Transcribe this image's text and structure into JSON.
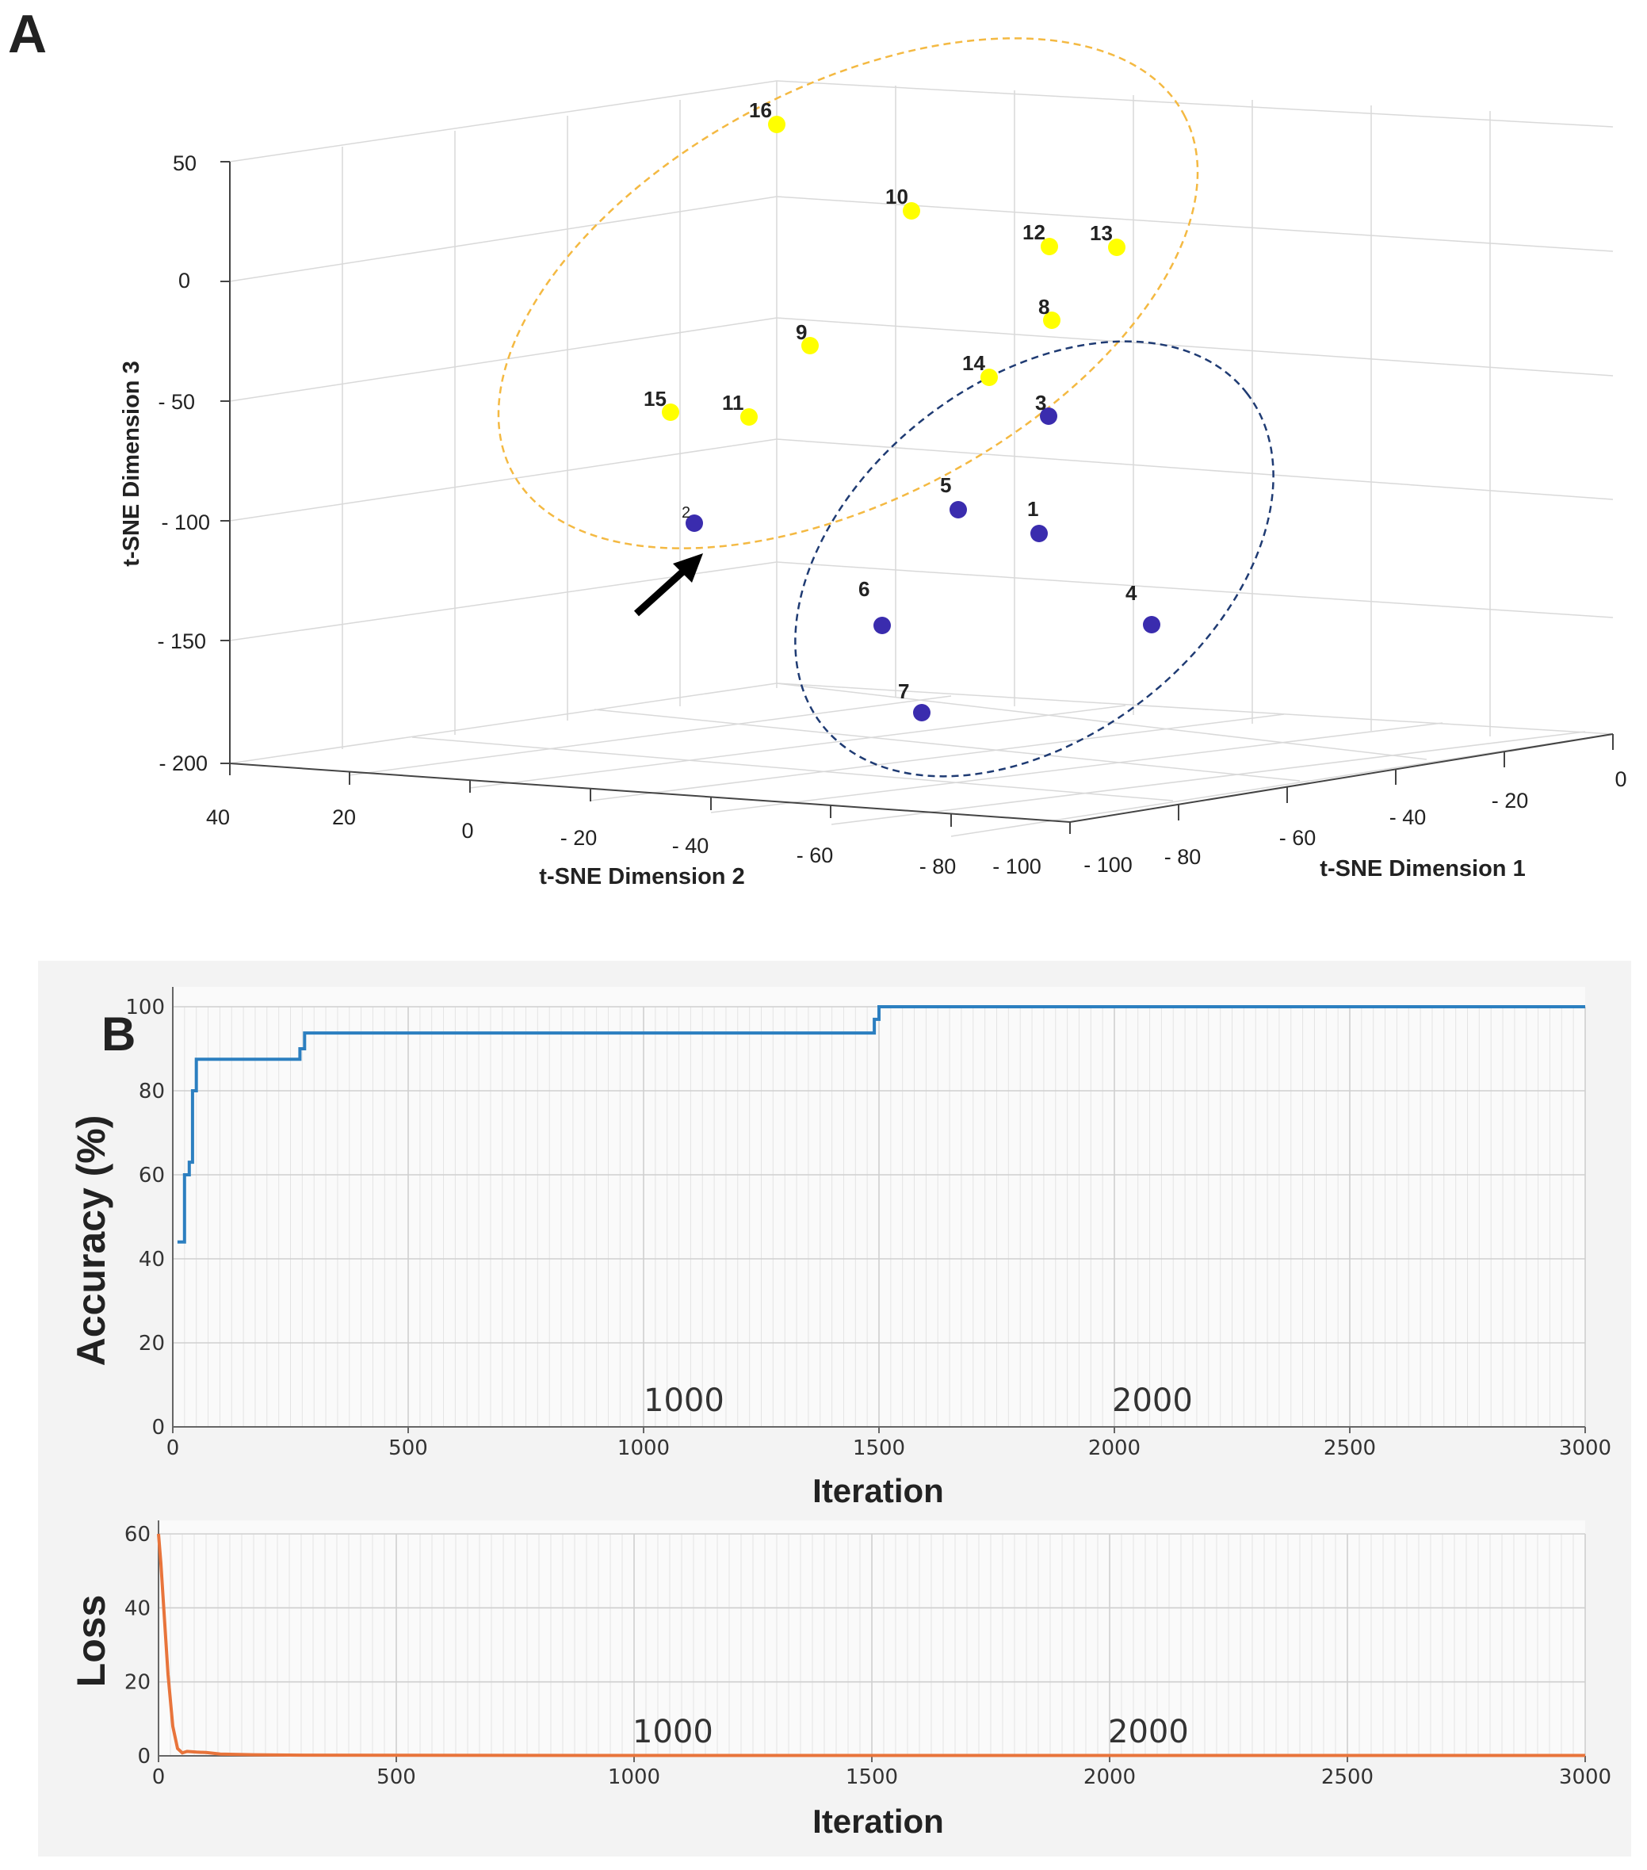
{
  "panel_a": {
    "label": "A",
    "axes": {
      "x_label": "t-SNE Dimension 1",
      "y_label": "t-SNE Dimension 2",
      "z_label": "t-SNE Dimension 3",
      "x_ticks": [
        "- 100",
        "- 80",
        "- 60",
        "- 40",
        "- 20",
        "0"
      ],
      "y_ticks": [
        "40",
        "20",
        "0",
        "- 20",
        "- 40",
        "- 60",
        "- 80",
        "- 100"
      ],
      "z_ticks": [
        "50",
        "0",
        "- 50",
        "- 100",
        "- 150",
        "- 200"
      ]
    },
    "colors": {
      "group1": "#FFFF00",
      "group2": "#3A2CAE",
      "ellipse1": "#F4B942",
      "ellipse2": "#1F3B73"
    }
  },
  "panel_b": {
    "label": "B",
    "accuracy": {
      "ylabel": "Accuracy (%)",
      "xlabel": "Iteration",
      "yticks": [
        "0",
        "20",
        "40",
        "60",
        "80",
        "100"
      ],
      "xticks": [
        "0",
        "500",
        "1000",
        "1500",
        "2000",
        "2500",
        "3000"
      ],
      "watermarks": [
        "1000",
        "2000"
      ]
    },
    "loss": {
      "ylabel": "Loss",
      "xlabel": "Iteration",
      "yticks": [
        "0",
        "20",
        "40",
        "60"
      ],
      "xticks": [
        "0",
        "500",
        "1000",
        "1500",
        "2000",
        "2500",
        "3000"
      ],
      "watermarks": [
        "1000",
        "2000"
      ]
    },
    "colors": {
      "accuracy": "#2C7FC0",
      "loss": "#E8743B"
    }
  },
  "chart_data": [
    {
      "type": "scatter",
      "title": "",
      "xlabel": "t-SNE Dimension 1",
      "ylabel": "t-SNE Dimension 2",
      "zlabel": "t-SNE Dimension 3",
      "xlim": [
        -100,
        0
      ],
      "ylim": [
        -100,
        40
      ],
      "zlim": [
        -200,
        50
      ],
      "series": [
        {
          "name": "group1",
          "color": "#FFFF00",
          "points": [
            {
              "id": "8"
            },
            {
              "id": "9"
            },
            {
              "id": "10"
            },
            {
              "id": "11"
            },
            {
              "id": "12"
            },
            {
              "id": "13"
            },
            {
              "id": "14"
            },
            {
              "id": "15"
            },
            {
              "id": "16"
            }
          ]
        },
        {
          "name": "group2",
          "color": "#3A2CAE",
          "points": [
            {
              "id": "1"
            },
            {
              "id": "2"
            },
            {
              "id": "3"
            },
            {
              "id": "4"
            },
            {
              "id": "5"
            },
            {
              "id": "6"
            },
            {
              "id": "7"
            }
          ]
        }
      ]
    },
    {
      "type": "line",
      "title": "",
      "xlabel": "Iteration",
      "ylabel": "Accuracy (%)",
      "xlim": [
        0,
        3000
      ],
      "ylim": [
        0,
        100
      ],
      "series": [
        {
          "name": "Accuracy",
          "x": [
            10,
            25,
            25,
            35,
            35,
            42,
            42,
            50,
            50,
            270,
            270,
            280,
            280,
            1490,
            1490,
            1500,
            1500,
            3000
          ],
          "values": [
            44,
            44,
            60,
            60,
            63,
            63,
            80,
            80,
            87.5,
            87.5,
            90,
            90,
            93.75,
            93.75,
            97,
            97,
            100,
            100
          ]
        }
      ]
    },
    {
      "type": "line",
      "title": "",
      "xlabel": "Iteration",
      "ylabel": "Loss",
      "xlim": [
        0,
        3000
      ],
      "ylim": [
        0,
        60
      ],
      "series": [
        {
          "name": "Loss",
          "x": [
            0,
            5,
            12,
            20,
            30,
            40,
            50,
            60,
            80,
            100,
            130,
            200,
            300,
            1000,
            2000,
            3000
          ],
          "values": [
            60,
            52,
            38,
            22,
            8,
            2,
            0.8,
            1.2,
            1.0,
            0.9,
            0.5,
            0.3,
            0.2,
            0.1,
            0.1,
            0.1
          ]
        }
      ]
    }
  ]
}
